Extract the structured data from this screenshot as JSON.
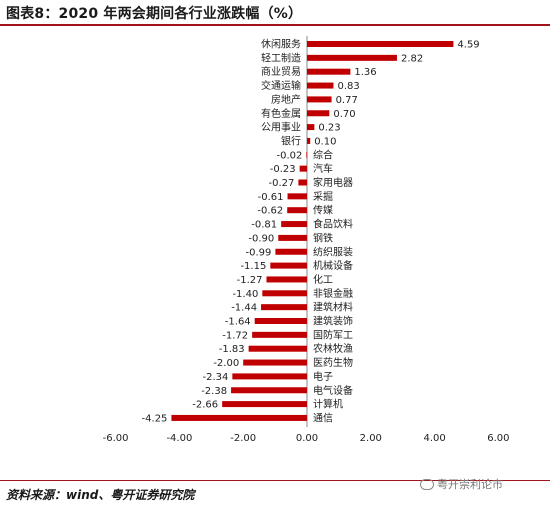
{
  "title": "图表8：2020 年两会期间各行业涨跌幅（%）",
  "source": "资料来源：wind、粤开证券研究院",
  "watermark": "粤开崇利论市",
  "chart_data": {
    "type": "bar",
    "orientation": "horizontal",
    "title": "图表8：2020 年两会期间各行业涨跌幅（%）",
    "categories": [
      "休闲服务",
      "轻工制造",
      "商业贸易",
      "交通运输",
      "房地产",
      "有色金属",
      "公用事业",
      "银行",
      "综合",
      "汽车",
      "家用电器",
      "采掘",
      "传媒",
      "食品饮料",
      "钢铁",
      "纺织服装",
      "机械设备",
      "化工",
      "非银金融",
      "建筑材料",
      "建筑装饰",
      "国防军工",
      "农林牧渔",
      "医药生物",
      "电子",
      "电气设备",
      "计算机",
      "通信"
    ],
    "values": [
      4.59,
      2.82,
      1.36,
      0.83,
      0.77,
      0.7,
      0.23,
      0.1,
      -0.02,
      -0.23,
      -0.27,
      -0.61,
      -0.62,
      -0.81,
      -0.9,
      -0.99,
      -1.15,
      -1.27,
      -1.4,
      -1.44,
      -1.64,
      -1.72,
      -1.83,
      -2.0,
      -2.34,
      -2.38,
      -2.66,
      -4.25
    ],
    "value_labels": [
      "4.59",
      "2.82",
      "1.36",
      "0.83",
      "0.77",
      "0.70",
      "0.23",
      "0.10",
      "-0.02",
      "-0.23",
      "-0.27",
      "-0.61",
      "-0.62",
      "-0.81",
      "-0.90",
      "-0.99",
      "-1.15",
      "-1.27",
      "-1.40",
      "-1.44",
      "-1.64",
      "-1.72",
      "-1.83",
      "-2.00",
      "-2.34",
      "-2.38",
      "-2.66",
      "-4.25"
    ],
    "xlim": [
      -6,
      6
    ],
    "xticks": [
      "-6.00",
      "-4.00",
      "-2.00",
      "0.00",
      "2.00",
      "4.00",
      "6.00"
    ],
    "xtick_values": [
      -6,
      -4,
      -2,
      0,
      2,
      4,
      6
    ],
    "bar_color": "#c00000",
    "grid": false,
    "legend": "none"
  }
}
